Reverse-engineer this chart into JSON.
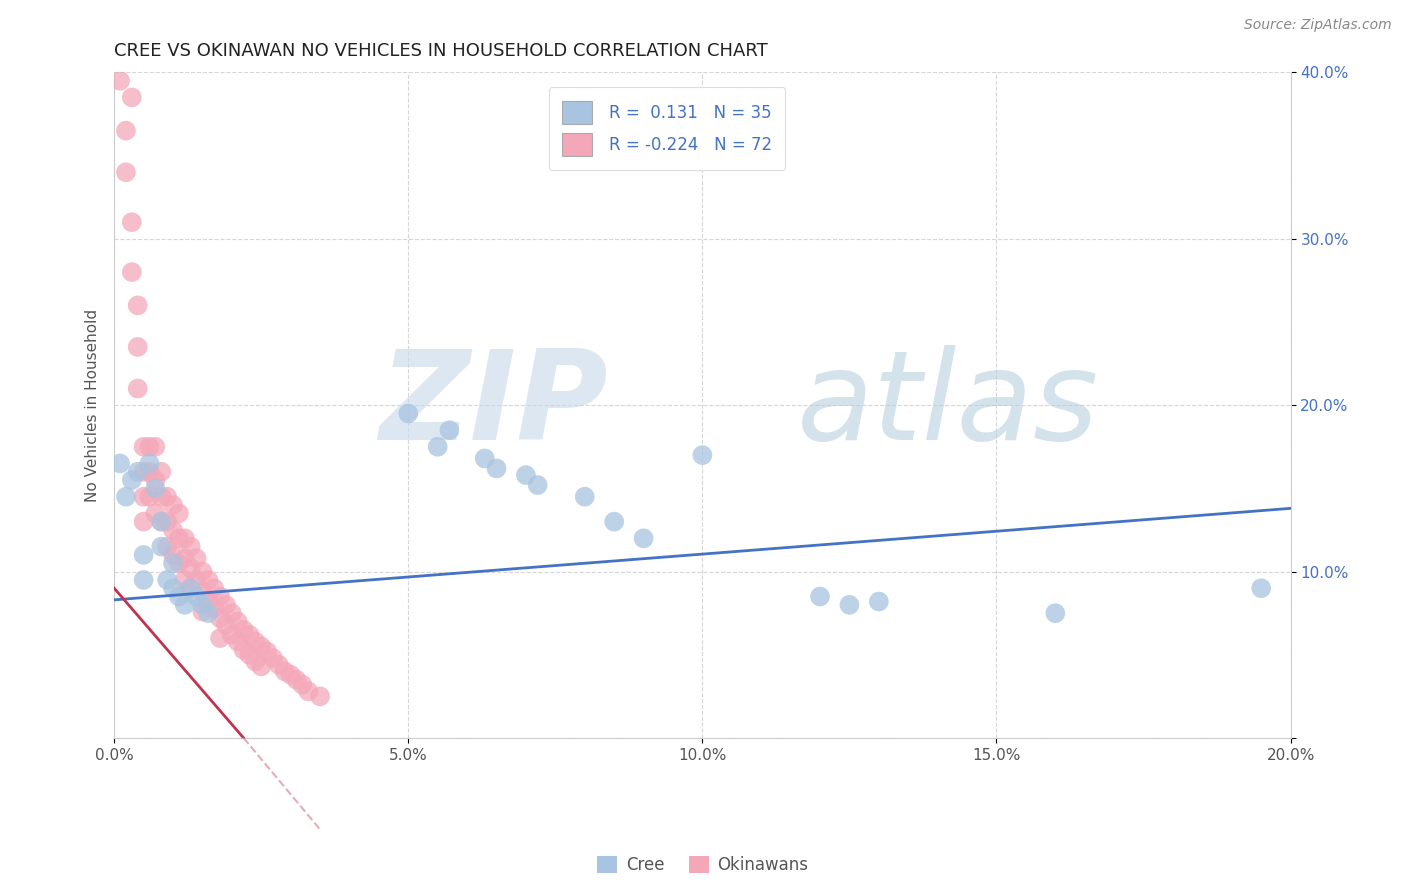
{
  "title": "CREE VS OKINAWAN NO VEHICLES IN HOUSEHOLD CORRELATION CHART",
  "source": "Source: ZipAtlas.com",
  "xlabel": "",
  "ylabel": "No Vehicles in Household",
  "xlim": [
    0.0,
    0.2
  ],
  "ylim": [
    0.0,
    0.4
  ],
  "xticks": [
    0.0,
    0.05,
    0.1,
    0.15,
    0.2
  ],
  "xticklabels": [
    "0.0%",
    "5.0%",
    "10.0%",
    "15.0%",
    "20.0%"
  ],
  "yticks": [
    0.0,
    0.1,
    0.2,
    0.3,
    0.4
  ],
  "yticklabels": [
    "",
    "10.0%",
    "20.0%",
    "30.0%",
    "40.0%"
  ],
  "cree_color": "#a8c4e0",
  "okinawan_color": "#f4a7b9",
  "cree_R": 0.131,
  "cree_N": 35,
  "okinawan_R": -0.224,
  "okinawan_N": 72,
  "cree_line_color": "#4472c4",
  "okinawan_line_color": "#c0334d",
  "watermark_zip": "ZIP",
  "watermark_atlas": "atlas",
  "watermark_color_zip": "#c5d8ea",
  "watermark_color_atlas": "#b8cfe0",
  "background_color": "#ffffff",
  "grid_color": "#cccccc",
  "cree_x": [
    0.001,
    0.002,
    0.003,
    0.004,
    0.005,
    0.005,
    0.006,
    0.007,
    0.008,
    0.008,
    0.009,
    0.01,
    0.01,
    0.011,
    0.012,
    0.013,
    0.014,
    0.015,
    0.016,
    0.05,
    0.055,
    0.057,
    0.063,
    0.065,
    0.07,
    0.072,
    0.08,
    0.085,
    0.09,
    0.1,
    0.12,
    0.125,
    0.13,
    0.16,
    0.195
  ],
  "cree_y": [
    0.165,
    0.145,
    0.155,
    0.16,
    0.095,
    0.11,
    0.165,
    0.15,
    0.115,
    0.13,
    0.095,
    0.09,
    0.105,
    0.085,
    0.08,
    0.09,
    0.085,
    0.08,
    0.075,
    0.195,
    0.175,
    0.185,
    0.168,
    0.162,
    0.158,
    0.152,
    0.145,
    0.13,
    0.12,
    0.17,
    0.085,
    0.08,
    0.082,
    0.075,
    0.09
  ],
  "okinawan_x": [
    0.001,
    0.002,
    0.002,
    0.003,
    0.003,
    0.003,
    0.004,
    0.004,
    0.004,
    0.005,
    0.005,
    0.005,
    0.005,
    0.006,
    0.006,
    0.006,
    0.007,
    0.007,
    0.007,
    0.008,
    0.008,
    0.008,
    0.009,
    0.009,
    0.009,
    0.01,
    0.01,
    0.01,
    0.011,
    0.011,
    0.011,
    0.012,
    0.012,
    0.012,
    0.013,
    0.013,
    0.013,
    0.014,
    0.014,
    0.015,
    0.015,
    0.015,
    0.016,
    0.016,
    0.017,
    0.017,
    0.018,
    0.018,
    0.018,
    0.019,
    0.019,
    0.02,
    0.02,
    0.021,
    0.021,
    0.022,
    0.022,
    0.023,
    0.023,
    0.024,
    0.024,
    0.025,
    0.025,
    0.026,
    0.027,
    0.028,
    0.029,
    0.03,
    0.031,
    0.032,
    0.033,
    0.035
  ],
  "okinawan_y": [
    0.395,
    0.365,
    0.34,
    0.385,
    0.31,
    0.28,
    0.26,
    0.235,
    0.21,
    0.175,
    0.16,
    0.145,
    0.13,
    0.175,
    0.16,
    0.145,
    0.175,
    0.155,
    0.135,
    0.16,
    0.145,
    0.13,
    0.145,
    0.13,
    0.115,
    0.14,
    0.125,
    0.11,
    0.135,
    0.12,
    0.105,
    0.12,
    0.108,
    0.095,
    0.115,
    0.102,
    0.09,
    0.108,
    0.095,
    0.1,
    0.088,
    0.076,
    0.095,
    0.082,
    0.09,
    0.078,
    0.085,
    0.072,
    0.06,
    0.08,
    0.068,
    0.075,
    0.062,
    0.07,
    0.058,
    0.065,
    0.053,
    0.062,
    0.05,
    0.058,
    0.046,
    0.055,
    0.043,
    0.052,
    0.048,
    0.044,
    0.04,
    0.038,
    0.035,
    0.032,
    0.028,
    0.025
  ]
}
